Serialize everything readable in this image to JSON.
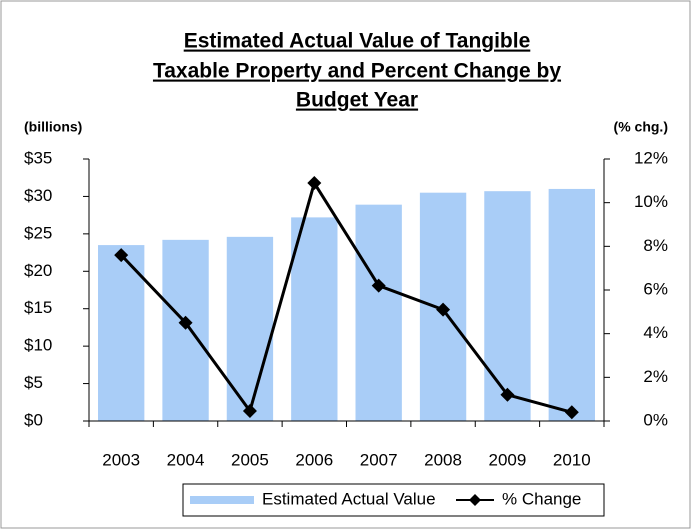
{
  "chart_data": {
    "type": "bar-line",
    "title": [
      "Estimated Actual Value of Tangible",
      "Taxable Property and Percent Change by",
      "Budget Year"
    ],
    "ylabel": "(billions)",
    "y2label": "(% chg.)",
    "categories": [
      "2003",
      "2004",
      "2005",
      "2006",
      "2007",
      "2008",
      "2009",
      "2010"
    ],
    "series": [
      {
        "name": "Estimated Actual Value",
        "type": "bar",
        "color": "#a9cdf7",
        "axis": "y",
        "values": [
          23.5,
          24.2,
          24.6,
          27.2,
          28.9,
          30.5,
          30.7,
          31.0
        ]
      },
      {
        "name": "% Change",
        "type": "line",
        "color": "#000000",
        "axis": "y2",
        "values": [
          7.6,
          4.5,
          0.46,
          10.9,
          6.2,
          5.1,
          1.2,
          0.4
        ]
      }
    ],
    "ylim": [
      0,
      35
    ],
    "yticks": [
      {
        "value": 0,
        "label": "$0"
      },
      {
        "value": 5,
        "label": "$5"
      },
      {
        "value": 10,
        "label": "$10"
      },
      {
        "value": 15,
        "label": "$15"
      },
      {
        "value": 20,
        "label": "$20"
      },
      {
        "value": 25,
        "label": "$25"
      },
      {
        "value": 30,
        "label": "$30"
      },
      {
        "value": 35,
        "label": "$35"
      }
    ],
    "y2lim": [
      0,
      12
    ],
    "y2ticks": [
      {
        "value": 0,
        "label": "0%"
      },
      {
        "value": 2,
        "label": "2%"
      },
      {
        "value": 4,
        "label": "4%"
      },
      {
        "value": 6,
        "label": "6%"
      },
      {
        "value": 8,
        "label": "8%"
      },
      {
        "value": 10,
        "label": "10%"
      },
      {
        "value": 12,
        "label": "12%"
      }
    ],
    "legend": "bottom"
  }
}
